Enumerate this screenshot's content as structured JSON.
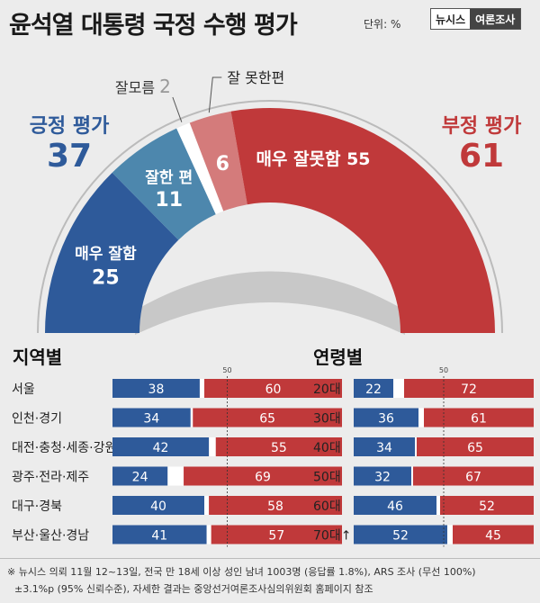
{
  "title": "윤석열 대통령 국정 수행 평가",
  "unit": "단위: %",
  "brand": {
    "left": "뉴시스",
    "right": "여론조사"
  },
  "colors": {
    "blue_dark": "#2e5a9a",
    "blue_mid": "#4d87ad",
    "gray_mid": "#9a9a9a",
    "red_light": "#d47b7b",
    "red_dark": "#c0393a",
    "white": "#ffffff"
  },
  "summary": {
    "positive_label": "긍정 평가",
    "positive_value": "37",
    "negative_label": "부정 평가",
    "negative_value": "61"
  },
  "chart_data": [
    {
      "type": "pie",
      "title": "윤석열 대통령 국정 수행 평가",
      "slices": [
        {
          "label": "매우 잘함",
          "value": 25,
          "color": "#2e5a9a"
        },
        {
          "label": "잘한 편",
          "value": 11,
          "color": "#4d87ad"
        },
        {
          "label": "잘모름",
          "value": 2,
          "color": "#ffffff"
        },
        {
          "label": "잘 못한편",
          "value": 6,
          "color": "#d47b7b"
        },
        {
          "label": "매우 잘못함",
          "value": 55,
          "color": "#c0393a"
        }
      ]
    },
    {
      "type": "bar",
      "title": "지역별",
      "orientation": "horizontal",
      "stacked": true,
      "reference_line": 50,
      "categories": [
        "서울",
        "인천·경기",
        "대전·충청·세종·강원",
        "광주·전라·제주",
        "대구·경북",
        "부산·울산·경남"
      ],
      "series": [
        {
          "name": "긍정 평가",
          "values": [
            38,
            34,
            42,
            24,
            40,
            41
          ]
        },
        {
          "name": "부정 평가",
          "values": [
            60,
            65,
            55,
            69,
            58,
            57
          ]
        }
      ]
    },
    {
      "type": "bar",
      "title": "연령별",
      "orientation": "horizontal",
      "stacked": true,
      "reference_line": 50,
      "categories": [
        "20대",
        "30대",
        "40대",
        "50대",
        "60대",
        "70대↑"
      ],
      "series": [
        {
          "name": "긍정 평가",
          "values": [
            22,
            36,
            34,
            32,
            46,
            52
          ]
        },
        {
          "name": "부정 평가",
          "values": [
            72,
            61,
            65,
            67,
            52,
            45
          ]
        }
      ]
    }
  ],
  "footnote": {
    "line1": "※ 뉴시스 의뢰 11월 12~13일, 전국 만 18세 이상 성인 남녀 1003명 (응답률 1.8%), ARS 조사 (무선 100%)",
    "line2": "±3.1%p (95% 신뢰수준), 자세한 결과는 중앙선거여론조사심의위원회 홈페이지 참조"
  }
}
